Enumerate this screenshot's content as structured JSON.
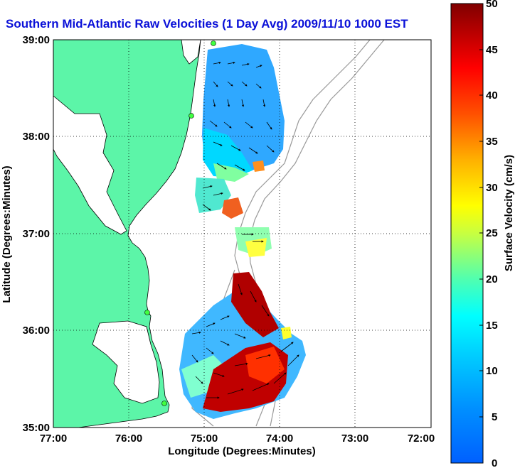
{
  "title": "Southern Mid-Atlantic Raw Velocities (1 Day Avg) 2009/11/10 1000 EST",
  "map": {
    "xlabel": "Longitude (Degrees:Minutes)",
    "ylabel": "Latitude (Degrees:Minutes)",
    "x_ticks": [
      "77:00",
      "76:00",
      "75:00",
      "74:00",
      "73:00",
      "72:00"
    ],
    "y_ticks": [
      "39:00",
      "38:00",
      "37:00",
      "36:00",
      "35:00"
    ],
    "xlim": [
      -77,
      -72
    ],
    "ylim": [
      35,
      39
    ],
    "land_color": "#5cf5a8",
    "grid": "dotted"
  },
  "colorbar": {
    "label": "Surface Velocity (cm/s)",
    "ticks": [
      "50",
      "45",
      "40",
      "35",
      "30",
      "25",
      "20",
      "15",
      "10",
      "5",
      "0"
    ],
    "range": [
      0,
      50
    ]
  }
}
